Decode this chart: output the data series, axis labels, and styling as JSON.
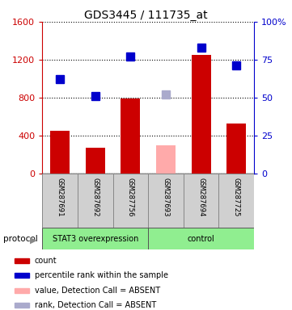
{
  "title": "GDS3445 / 111735_at",
  "samples": [
    "GSM287691",
    "GSM287692",
    "GSM287756",
    "GSM287693",
    "GSM287694",
    "GSM287725"
  ],
  "bar_values": [
    450,
    275,
    790,
    300,
    1250,
    530
  ],
  "bar_absent": [
    false,
    false,
    false,
    true,
    false,
    false
  ],
  "rank_values": [
    62,
    51,
    77,
    52,
    83,
    71
  ],
  "rank_absent": [
    false,
    false,
    false,
    true,
    false,
    false
  ],
  "bar_color": "#cc0000",
  "bar_absent_color": "#ffaaaa",
  "rank_color": "#0000cc",
  "rank_absent_color": "#aaaacc",
  "ylim_left": [
    0,
    1600
  ],
  "ylim_right": [
    0,
    100
  ],
  "yticks_left": [
    0,
    400,
    800,
    1200,
    1600
  ],
  "yticks_right": [
    0,
    25,
    50,
    75,
    100
  ],
  "ytick_right_labels": [
    "0",
    "25",
    "50",
    "75",
    "100%"
  ],
  "protocol_groups": [
    {
      "label": "STAT3 overexpression",
      "start": 0,
      "end": 3,
      "color": "#90ee90"
    },
    {
      "label": "control",
      "start": 3,
      "end": 6,
      "color": "#90ee90"
    }
  ],
  "protocol_label": "protocol",
  "legend_items": [
    {
      "label": "count",
      "color": "#cc0000"
    },
    {
      "label": "percentile rank within the sample",
      "color": "#0000cc"
    },
    {
      "label": "value, Detection Call = ABSENT",
      "color": "#ffaaaa"
    },
    {
      "label": "rank, Detection Call = ABSENT",
      "color": "#aaaacc"
    }
  ],
  "bar_width": 0.55,
  "left_axis_color": "#cc0000",
  "right_axis_color": "#0000cc",
  "rank_marker_size": 7,
  "sample_box_color": "#d0d0d0",
  "sample_box_edge": "#888888"
}
